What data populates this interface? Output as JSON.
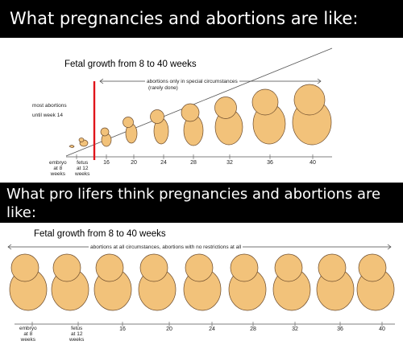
{
  "top": {
    "banner": "What pregnancies and abortions are like:",
    "chart_title": "Fetal growth from 8 to 40 weeks",
    "arrow_label_1": "abortions only in special circumstances",
    "arrow_label_2": "(rarely done)",
    "most_abortions_1": "most abortions",
    "most_abortions_2": "until week 14",
    "labels": {
      "embryo": [
        "embryo",
        "at 8",
        "weeks"
      ],
      "fetus": [
        "fetus",
        "at 12",
        "weeks"
      ]
    },
    "ticks": [
      "16",
      "20",
      "24",
      "28",
      "32",
      "36",
      "40"
    ],
    "marker_color": "#e0141b"
  },
  "bottom": {
    "banner": "What pro lifers think pregnancies and abortions are like:",
    "chart_title": "Fetal growth from 8 to 40 weeks",
    "arrow_label": "abortions at all circumstances, abortions with no restrictions at all",
    "labels": {
      "embryo": [
        "embryo",
        "at 8",
        "weeks"
      ],
      "fetus": [
        "fetus",
        "at 12",
        "weeks"
      ]
    },
    "ticks": [
      "16",
      "20",
      "24",
      "28",
      "32",
      "36",
      "40"
    ]
  },
  "fetus_color": "#f2c27a",
  "fetus_outline": "#6b4a2b"
}
